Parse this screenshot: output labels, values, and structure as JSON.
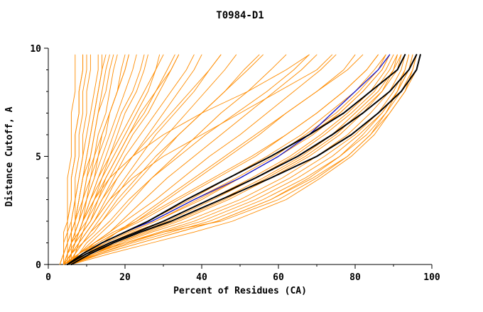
{
  "window": {
    "title": "T0984-D1"
  },
  "chart_data": {
    "type": "line",
    "title": "T0984-D1",
    "xlabel": "Percent of Residues (CA)",
    "ylabel": "Distance Cutoff, A",
    "xlim": [
      0,
      100
    ],
    "ylim": [
      0,
      10
    ],
    "x_ticks": [
      0,
      20,
      40,
      60,
      80,
      100
    ],
    "x_minor_step": 10,
    "y_ticks": [
      0,
      5,
      10
    ],
    "y_minor_step": 1,
    "grid": false,
    "legend": "none",
    "colors": {
      "orange": "#FF8C00",
      "blue": "#1414CC",
      "black": "#000000"
    },
    "y_anchors": [
      0,
      0.5,
      1,
      1.5,
      2,
      3,
      4,
      5,
      6,
      7,
      8,
      9,
      9.7
    ],
    "series": [
      {
        "name": "model-curves",
        "color_key": "orange",
        "width": 0.9,
        "curves": [
          [
            3,
            4,
            4,
            4,
            5,
            5,
            5,
            6,
            6,
            6,
            7,
            7,
            7
          ],
          [
            4,
            4,
            5,
            5,
            5,
            6,
            6,
            7,
            7,
            8,
            8,
            9,
            9
          ],
          [
            4,
            5,
            5,
            6,
            6,
            7,
            7,
            8,
            8,
            9,
            9,
            10,
            10
          ],
          [
            5,
            5,
            6,
            6,
            7,
            7,
            8,
            9,
            9,
            10,
            10,
            11,
            11
          ],
          [
            3,
            4,
            4,
            5,
            5,
            6,
            6,
            7,
            7,
            8,
            8,
            9,
            9
          ],
          [
            4,
            5,
            6,
            6,
            7,
            8,
            9,
            10,
            11,
            12,
            13,
            14,
            14
          ],
          [
            5,
            6,
            6,
            7,
            8,
            9,
            10,
            11,
            12,
            13,
            14,
            15,
            16
          ],
          [
            4,
            5,
            6,
            7,
            8,
            9,
            11,
            12,
            13,
            15,
            16,
            17,
            18
          ],
          [
            5,
            6,
            7,
            8,
            9,
            10,
            12,
            13,
            15,
            16,
            18,
            19,
            20
          ],
          [
            4,
            5,
            6,
            7,
            8,
            10,
            12,
            14,
            16,
            18,
            20,
            22,
            23
          ],
          [
            5,
            6,
            7,
            8,
            9,
            11,
            13,
            16,
            18,
            20,
            23,
            25,
            26
          ],
          [
            4,
            5,
            7,
            8,
            9,
            12,
            14,
            17,
            20,
            23,
            26,
            28,
            30
          ],
          [
            5,
            6,
            8,
            9,
            11,
            13,
            16,
            19,
            22,
            26,
            29,
            32,
            34
          ],
          [
            4,
            6,
            7,
            9,
            10,
            13,
            15,
            18,
            21,
            24,
            28,
            31,
            33
          ],
          [
            5,
            7,
            8,
            10,
            12,
            15,
            18,
            22,
            26,
            30,
            34,
            38,
            40
          ],
          [
            4,
            6,
            8,
            10,
            12,
            16,
            20,
            24,
            28,
            33,
            38,
            42,
            45
          ],
          [
            6,
            7,
            9,
            11,
            13,
            17,
            21,
            26,
            31,
            36,
            41,
            46,
            49
          ],
          [
            5,
            7,
            9,
            12,
            14,
            19,
            24,
            29,
            34,
            40,
            46,
            51,
            55
          ],
          [
            4,
            4,
            5,
            5,
            6,
            7,
            8,
            9,
            10,
            11,
            12,
            13,
            13
          ],
          [
            5,
            5,
            6,
            7,
            7,
            8,
            9,
            10,
            11,
            12,
            13,
            14,
            15
          ],
          [
            4,
            5,
            6,
            6,
            7,
            8,
            9,
            11,
            12,
            13,
            15,
            16,
            17
          ],
          [
            5,
            6,
            7,
            7,
            8,
            10,
            11,
            13,
            14,
            16,
            18,
            20,
            21
          ],
          [
            4,
            5,
            6,
            8,
            9,
            11,
            13,
            15,
            17,
            19,
            22,
            24,
            25
          ],
          [
            6,
            6,
            7,
            8,
            9,
            11,
            14,
            16,
            19,
            22,
            25,
            28,
            29
          ],
          [
            5,
            7,
            8,
            9,
            11,
            14,
            17,
            20,
            24,
            28,
            32,
            36,
            38
          ],
          [
            4,
            6,
            7,
            9,
            11,
            14,
            18,
            22,
            27,
            32,
            37,
            42,
            45
          ],
          [
            3,
            4,
            5,
            6,
            7,
            9,
            10,
            12,
            14,
            16,
            18,
            20,
            21
          ],
          [
            5,
            6,
            7,
            8,
            10,
            12,
            15,
            18,
            21,
            25,
            28,
            32,
            34
          ],
          [
            4,
            5,
            6,
            8,
            9,
            12,
            16,
            22,
            30,
            40,
            52,
            62,
            68
          ],
          [
            5,
            6,
            8,
            10,
            12,
            16,
            22,
            30,
            40,
            50,
            60,
            70,
            74
          ],
          [
            5,
            8,
            11,
            14,
            17,
            22,
            27,
            33,
            39,
            45,
            52,
            58,
            62
          ],
          [
            6,
            9,
            12,
            16,
            19,
            25,
            31,
            38,
            45,
            52,
            59,
            66,
            70
          ],
          [
            5,
            8,
            12,
            16,
            20,
            28,
            35,
            42,
            50,
            57,
            64,
            71,
            75
          ],
          [
            6,
            10,
            14,
            18,
            23,
            31,
            39,
            47,
            55,
            62,
            70,
            77,
            80
          ],
          [
            5,
            9,
            13,
            18,
            22,
            30,
            38,
            46,
            54,
            62,
            70,
            78,
            82
          ],
          [
            4,
            6,
            9,
            11,
            14,
            18,
            23,
            28,
            34,
            40,
            46,
            52,
            56
          ],
          [
            6,
            8,
            10,
            13,
            16,
            21,
            27,
            34,
            41,
            49,
            57,
            64,
            68
          ],
          [
            4,
            8,
            13,
            18,
            24,
            34,
            44,
            54,
            62,
            70,
            77,
            83,
            86
          ],
          [
            5,
            9,
            14,
            20,
            26,
            37,
            47,
            57,
            66,
            73,
            80,
            85,
            88
          ],
          [
            4,
            9,
            15,
            21,
            28,
            40,
            50,
            60,
            68,
            76,
            82,
            87,
            89
          ],
          [
            5,
            10,
            16,
            22,
            30,
            42,
            53,
            63,
            71,
            78,
            84,
            88,
            90
          ],
          [
            4,
            10,
            17,
            24,
            32,
            45,
            56,
            66,
            74,
            80,
            86,
            90,
            91
          ],
          [
            5,
            11,
            18,
            26,
            34,
            47,
            58,
            68,
            76,
            82,
            87,
            91,
            92
          ],
          [
            6,
            12,
            19,
            27,
            36,
            50,
            61,
            70,
            78,
            84,
            89,
            92,
            93
          ],
          [
            5,
            12,
            20,
            29,
            38,
            52,
            63,
            72,
            80,
            86,
            90,
            93,
            94
          ],
          [
            6,
            13,
            21,
            30,
            40,
            54,
            65,
            74,
            81,
            87,
            91,
            94,
            95
          ],
          [
            5,
            13,
            22,
            32,
            42,
            56,
            67,
            76,
            83,
            88,
            92,
            95,
            96
          ],
          [
            6,
            14,
            24,
            34,
            44,
            58,
            69,
            78,
            84,
            89,
            93,
            96,
            97
          ],
          [
            5,
            11,
            17,
            24,
            31,
            43,
            54,
            64,
            72,
            79,
            85,
            89,
            91
          ],
          [
            4,
            9,
            14,
            20,
            27,
            38,
            49,
            59,
            67,
            75,
            81,
            86,
            88
          ],
          [
            6,
            12,
            18,
            25,
            33,
            46,
            57,
            67,
            75,
            81,
            87,
            90,
            92
          ],
          [
            5,
            10,
            15,
            21,
            28,
            39,
            50,
            60,
            69,
            76,
            82,
            87,
            89
          ],
          [
            4,
            8,
            12,
            17,
            23,
            33,
            43,
            53,
            62,
            70,
            77,
            83,
            86
          ],
          [
            5,
            14,
            24,
            34,
            44,
            58,
            68,
            76,
            82,
            87,
            91,
            94,
            95
          ],
          [
            6,
            16,
            27,
            38,
            48,
            62,
            71,
            79,
            85,
            89,
            93,
            95,
            96
          ],
          [
            5,
            10,
            20,
            30,
            45,
            60,
            70,
            78,
            84,
            88,
            91,
            93,
            94
          ]
        ]
      },
      {
        "name": "highlight-blue-curve",
        "color_key": "blue",
        "width": 1.3,
        "x": [
          5,
          9,
          14,
          20,
          27,
          38,
          50,
          60,
          68,
          74,
          80,
          86,
          89
        ]
      },
      {
        "name": "highlight-black-curve-1",
        "color_key": "black",
        "width": 2,
        "x": [
          5,
          9,
          14,
          20,
          26,
          36,
          47,
          58,
          68,
          77,
          84,
          91,
          93
        ]
      },
      {
        "name": "highlight-black-curve-2",
        "color_key": "black",
        "width": 2,
        "x": [
          5,
          10,
          16,
          23,
          30,
          42,
          54,
          65,
          74,
          82,
          89,
          94,
          96
        ]
      },
      {
        "name": "highlight-black-curve-3",
        "color_key": "black",
        "width": 2,
        "x": [
          6,
          11,
          17,
          24,
          32,
          45,
          58,
          70,
          79,
          86,
          92,
          96,
          97
        ]
      }
    ]
  }
}
